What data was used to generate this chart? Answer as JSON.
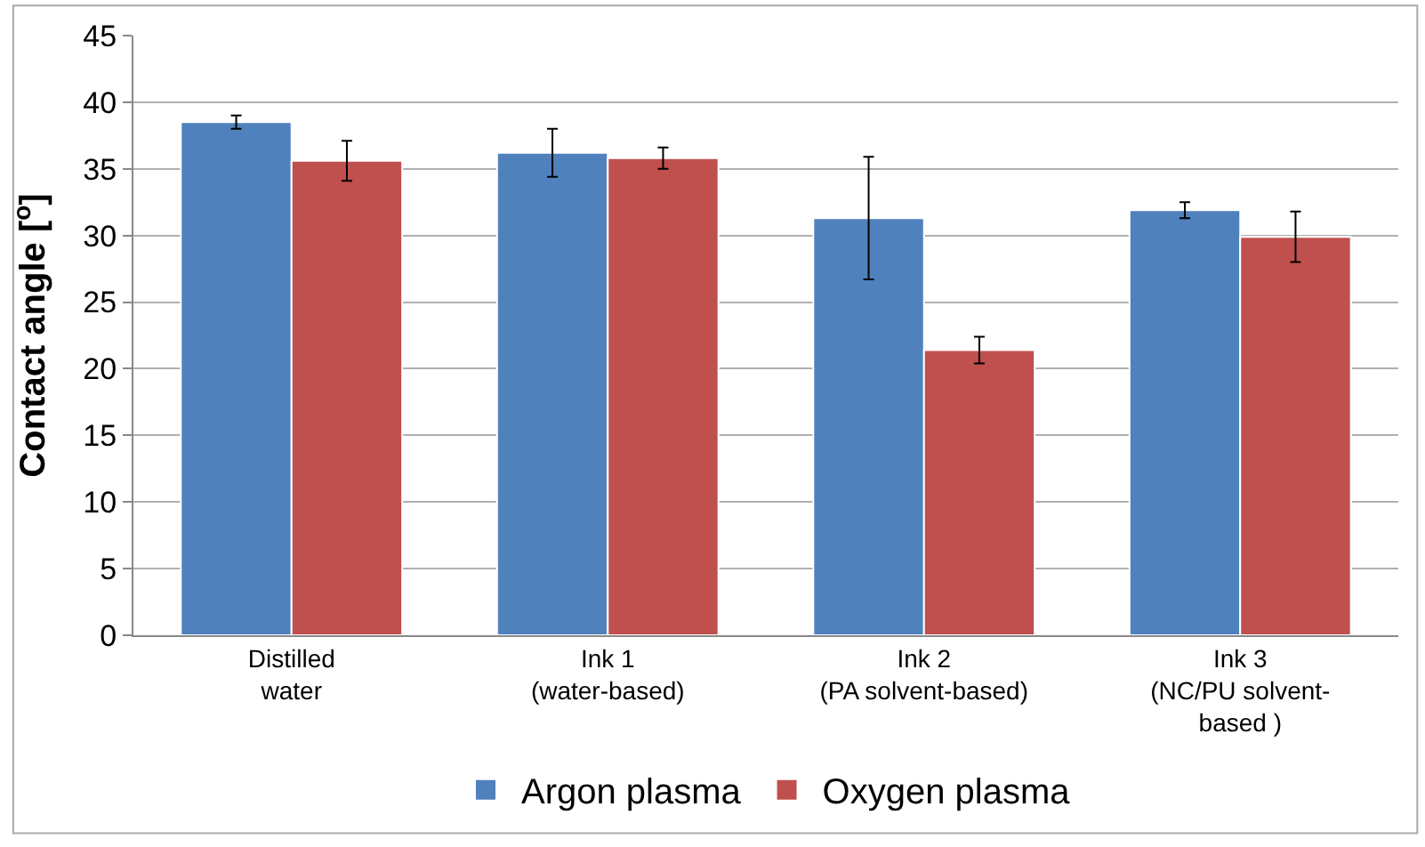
{
  "chart_data": {
    "type": "bar",
    "ylabel": "Contact angle [$^{o}$]",
    "categories": [
      "Distilled\nwater",
      "Ink 1\n(water-based)",
      "Ink 2\n(PA solvent-based)",
      "Ink 3\n(NC/PU solvent-\nbased )"
    ],
    "series": [
      {
        "name": "Argon plasma",
        "color": "#4f81bd",
        "values": [
          38.5,
          36.2,
          31.3,
          31.9
        ],
        "errors": [
          0.5,
          1.8,
          4.6,
          0.6
        ]
      },
      {
        "name": "Oxygen plasma",
        "color": "#c0504d",
        "values": [
          35.6,
          35.8,
          21.4,
          29.9
        ],
        "errors": [
          1.5,
          0.8,
          1.0,
          1.9
        ]
      }
    ],
    "ylim": [
      0,
      45
    ],
    "yticks": [
      0,
      5,
      10,
      15,
      20,
      25,
      30,
      35,
      40,
      45
    ],
    "grid": "y",
    "legend": "bottom"
  }
}
